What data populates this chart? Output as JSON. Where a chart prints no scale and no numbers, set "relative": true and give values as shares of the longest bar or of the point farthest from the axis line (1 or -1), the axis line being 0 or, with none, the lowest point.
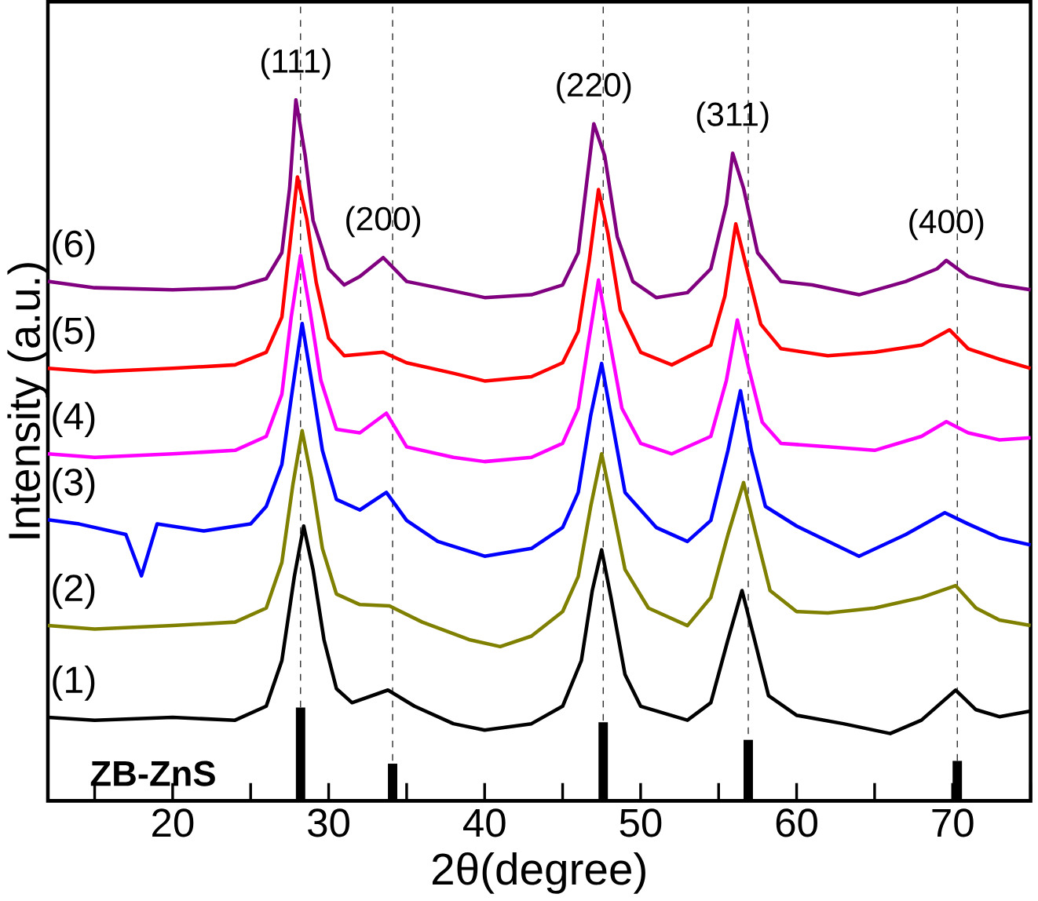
{
  "chart_data": {
    "type": "line",
    "relative": true,
    "xlabel": "2θ(degree)",
    "ylabel": "Intensity (a.u.)",
    "xlim": [
      12,
      75
    ],
    "xticks": [
      {
        "value": 15,
        "label": null
      },
      20,
      {
        "value": 25,
        "label": null
      },
      30,
      {
        "value": 35,
        "label": null
      },
      40,
      {
        "value": 45,
        "label": null
      },
      50,
      {
        "value": 55,
        "label": null
      },
      60,
      {
        "value": 65,
        "label": null
      },
      70,
      {
        "value": 75,
        "label": null
      }
    ],
    "tick_labels": "x",
    "grid": false,
    "marker": "none",
    "line_style": "solid",
    "series": [
      {
        "name": "(1)",
        "color": "#000000",
        "x": [
          12,
          15,
          20,
          24,
          26,
          27,
          27.8,
          28.4,
          29,
          29.7,
          30.5,
          31.5,
          33.8,
          35.5,
          38,
          40,
          43,
          45,
          46.2,
          46.9,
          47.5,
          48.1,
          49,
          50,
          53,
          54.5,
          55.6,
          56.5,
          57.3,
          58.2,
          60,
          63,
          66,
          68,
          70.2,
          71.5,
          73,
          75
        ],
        "values": [
          0.119,
          0.115,
          0.119,
          0.115,
          0.135,
          0.2,
          0.32,
          0.392,
          0.33,
          0.23,
          0.16,
          0.14,
          0.158,
          0.135,
          0.11,
          0.101,
          0.11,
          0.135,
          0.2,
          0.3,
          0.358,
          0.29,
          0.18,
          0.135,
          0.115,
          0.14,
          0.23,
          0.3,
          0.23,
          0.15,
          0.122,
          0.11,
          0.096,
          0.115,
          0.158,
          0.13,
          0.12,
          0.128
        ]
      },
      {
        "name": "(2)",
        "color": "#808000",
        "x": [
          12,
          15,
          20,
          24,
          26,
          27,
          27.7,
          28.3,
          28.9,
          29.6,
          30.5,
          32,
          33.9,
          36,
          39,
          41,
          43,
          45,
          46,
          46.8,
          47.5,
          48.1,
          49,
          50.5,
          53,
          54.5,
          55.6,
          56.6,
          57.4,
          58.3,
          60,
          62,
          65,
          68,
          70.2,
          71.5,
          73,
          75
        ],
        "values": [
          0.25,
          0.245,
          0.25,
          0.255,
          0.275,
          0.34,
          0.45,
          0.528,
          0.46,
          0.36,
          0.295,
          0.28,
          0.278,
          0.255,
          0.23,
          0.22,
          0.235,
          0.27,
          0.32,
          0.42,
          0.495,
          0.43,
          0.33,
          0.275,
          0.25,
          0.29,
          0.38,
          0.454,
          0.38,
          0.3,
          0.27,
          0.268,
          0.275,
          0.29,
          0.307,
          0.275,
          0.258,
          0.25
        ]
      },
      {
        "name": "(3)",
        "color": "#0000ff",
        "x": [
          12,
          14,
          17,
          18,
          19,
          22,
          25,
          26,
          27,
          27.7,
          28.3,
          28.9,
          29.6,
          30.5,
          32,
          33.7,
          35,
          37,
          40,
          43,
          45,
          46,
          46.8,
          47.5,
          48.1,
          49,
          51,
          53,
          54.5,
          55.6,
          56.4,
          57.1,
          58,
          60,
          64,
          67,
          69.5,
          71,
          73,
          75
        ],
        "values": [
          0.401,
          0.395,
          0.38,
          0.321,
          0.395,
          0.385,
          0.395,
          0.42,
          0.48,
          0.59,
          0.681,
          0.6,
          0.5,
          0.43,
          0.415,
          0.44,
          0.4,
          0.37,
          0.349,
          0.36,
          0.39,
          0.44,
          0.55,
          0.624,
          0.55,
          0.44,
          0.39,
          0.37,
          0.4,
          0.5,
          0.585,
          0.5,
          0.42,
          0.392,
          0.349,
          0.38,
          0.411,
          0.395,
          0.375,
          0.365
        ]
      },
      {
        "name": "(4)",
        "color": "#ff00ff",
        "x": [
          12,
          15,
          20,
          24,
          26,
          27,
          27.6,
          28.2,
          28.8,
          29.5,
          30.5,
          32,
          33.7,
          35,
          38,
          40,
          43,
          45,
          46,
          46.7,
          47.3,
          47.9,
          48.8,
          50,
          52,
          54.5,
          55.5,
          56.2,
          56.9,
          57.8,
          59,
          62,
          65,
          68,
          69.6,
          71,
          73,
          75
        ],
        "values": [
          0.495,
          0.49,
          0.495,
          0.5,
          0.52,
          0.58,
          0.69,
          0.778,
          0.7,
          0.6,
          0.53,
          0.525,
          0.553,
          0.505,
          0.49,
          0.484,
          0.49,
          0.51,
          0.56,
          0.66,
          0.743,
          0.67,
          0.56,
          0.51,
          0.495,
          0.52,
          0.6,
          0.686,
          0.62,
          0.54,
          0.51,
          0.505,
          0.5,
          0.52,
          0.541,
          0.525,
          0.515,
          0.518
        ]
      },
      {
        "name": "(5)",
        "color": "#ff0000",
        "x": [
          12,
          15,
          20,
          24,
          26,
          27,
          27.5,
          28.0,
          28.6,
          29.2,
          30,
          31,
          33.5,
          35,
          38,
          40,
          43,
          45,
          46,
          46.7,
          47.3,
          47.9,
          48.7,
          50,
          52,
          54.5,
          55.4,
          56.1,
          56.8,
          57.7,
          59,
          62,
          65,
          68,
          69.8,
          71,
          73,
          75
        ],
        "values": [
          0.617,
          0.612,
          0.617,
          0.622,
          0.64,
          0.69,
          0.79,
          0.89,
          0.83,
          0.74,
          0.66,
          0.635,
          0.64,
          0.625,
          0.61,
          0.599,
          0.605,
          0.625,
          0.67,
          0.77,
          0.872,
          0.81,
          0.7,
          0.64,
          0.622,
          0.65,
          0.72,
          0.823,
          0.76,
          0.68,
          0.645,
          0.635,
          0.64,
          0.65,
          0.672,
          0.645,
          0.63,
          0.617
        ]
      },
      {
        "name": "(6)",
        "color": "#800080",
        "x": [
          12,
          15,
          20,
          24,
          26,
          27,
          27.5,
          27.9,
          28.5,
          29,
          30,
          31,
          32,
          33.5,
          35,
          37,
          40,
          43,
          45,
          46,
          46.5,
          47.0,
          47.7,
          48.5,
          49.5,
          51,
          53,
          54.5,
          55.5,
          55.9,
          56.6,
          57.5,
          59,
          61,
          64,
          67,
          69,
          69.6,
          71,
          73,
          75
        ],
        "values": [
          0.741,
          0.732,
          0.729,
          0.732,
          0.745,
          0.782,
          0.874,
          1.0,
          0.92,
          0.828,
          0.759,
          0.736,
          0.748,
          0.775,
          0.741,
          0.732,
          0.718,
          0.722,
          0.736,
          0.782,
          0.874,
          0.966,
          0.92,
          0.805,
          0.741,
          0.718,
          0.725,
          0.759,
          0.851,
          0.924,
          0.874,
          0.782,
          0.741,
          0.736,
          0.722,
          0.741,
          0.759,
          0.771,
          0.748,
          0.736,
          0.729
        ]
      },
      {
        "type": "bar",
        "color": "#000000",
        "x": [
          28.2,
          34.1,
          47.6,
          56.9,
          70.3
        ],
        "values": [
          0.133,
          0.053,
          0.112,
          0.087,
          0.057
        ]
      }
    ],
    "ref_lines": [
      {
        "axis": "x",
        "value": 28.2,
        "color": "#000000",
        "line_style": "dashed"
      },
      {
        "axis": "x",
        "value": 34.1,
        "color": "#000000",
        "line_style": "dashed"
      },
      {
        "axis": "x",
        "value": 47.6,
        "color": "#000000",
        "line_style": "dashed"
      },
      {
        "axis": "x",
        "value": 56.9,
        "color": "#000000",
        "line_style": "dashed"
      },
      {
        "axis": "x",
        "value": 70.3,
        "color": "#000000",
        "line_style": "dashed"
      }
    ],
    "annotations": [
      {
        "text": "(111)",
        "x": 27.9,
        "y": 1.0
      },
      {
        "text": "(200)",
        "x": 33.5,
        "y": 0.775
      },
      {
        "text": "(220)",
        "x": 47.0,
        "y": 0.966
      },
      {
        "text": "(311)",
        "x": 55.9,
        "y": 0.924
      },
      {
        "text": "(400)",
        "x": 69.6,
        "y": 0.771
      },
      "**ZB-ZnS**"
    ]
  }
}
